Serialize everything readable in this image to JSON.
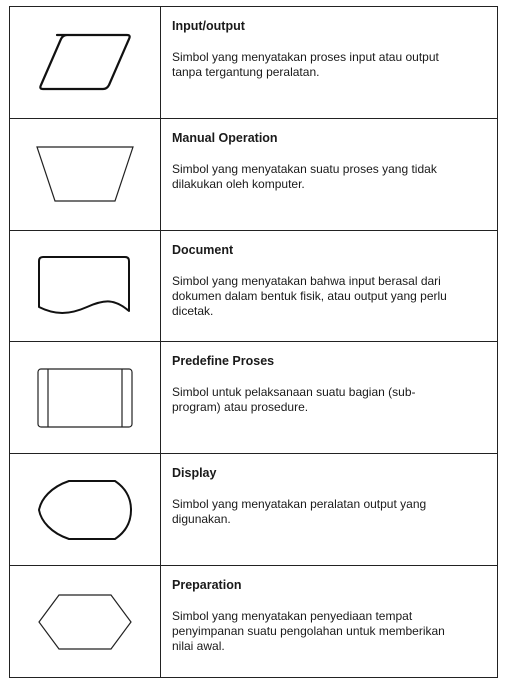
{
  "rows": [
    {
      "title": "Input/output",
      "description": "Simbol yang menyatakan proses input atau output tanpa tergantung peralatan.",
      "icon": "parallelogram-icon"
    },
    {
      "title": "Manual Operation",
      "description": "Simbol yang menyatakan suatu proses yang tidak dilakukan oleh komputer.",
      "icon": "trapezoid-icon"
    },
    {
      "title": "Document",
      "description": "Simbol yang menyatakan bahwa input berasal dari dokumen dalam bentuk fisik, atau output yang perlu dicetak.",
      "icon": "document-icon"
    },
    {
      "title": "Predefine Proses",
      "description": "Simbol untuk pelaksanaan suatu bagian (sub-program) atau prosedure.",
      "icon": "predefined-process-icon"
    },
    {
      "title": "Display",
      "description": "Simbol yang menyatakan peralatan output yang digunakan.",
      "icon": "display-icon"
    },
    {
      "title": "Preparation",
      "description": "Simbol yang menyatakan penyediaan tempat penyimpanan suatu pengolahan untuk memberikan nilai awal.",
      "icon": "hexagon-icon"
    }
  ]
}
